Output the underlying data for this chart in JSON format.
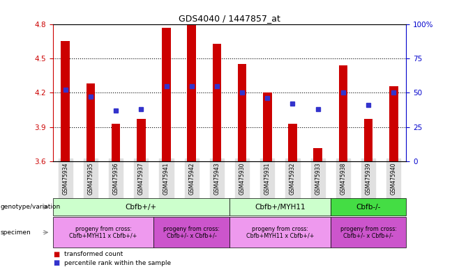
{
  "title": "GDS4040 / 1447857_at",
  "samples": [
    "GSM475934",
    "GSM475935",
    "GSM475936",
    "GSM475937",
    "GSM475941",
    "GSM475942",
    "GSM475943",
    "GSM475930",
    "GSM475931",
    "GSM475932",
    "GSM475933",
    "GSM475938",
    "GSM475939",
    "GSM475940"
  ],
  "red_values": [
    4.65,
    4.28,
    3.93,
    3.97,
    4.77,
    4.8,
    4.63,
    4.45,
    4.2,
    3.93,
    3.72,
    4.44,
    3.97,
    4.26
  ],
  "blue_pct": [
    52,
    47,
    37,
    38,
    55,
    55,
    55,
    50,
    46,
    42,
    38,
    50,
    41,
    50
  ],
  "ylim_left": [
    3.6,
    4.8
  ],
  "ylim_right": [
    0,
    100
  ],
  "yticks_left": [
    3.6,
    3.9,
    4.2,
    4.5,
    4.8
  ],
  "yticks_right": [
    0,
    25,
    50,
    75,
    100
  ],
  "ytick_labels_right": [
    "0",
    "25",
    "50",
    "75",
    "100%"
  ],
  "bar_color": "#cc0000",
  "dot_color": "#3333cc",
  "bar_bottom": 3.6,
  "genotype_groups": [
    {
      "label": "Cbfb+/+",
      "start": 0,
      "end": 7,
      "color": "#ccffcc"
    },
    {
      "label": "Cbfb+/MYH11",
      "start": 7,
      "end": 11,
      "color": "#ccffcc"
    },
    {
      "label": "Cbfb-/-",
      "start": 11,
      "end": 14,
      "color": "#44dd44"
    }
  ],
  "specimen_groups": [
    {
      "label": "progeny from cross:\nCbfb+MYH11 x Cbfb+/+",
      "start": 0,
      "end": 4,
      "color": "#ee99ee"
    },
    {
      "label": "progeny from cross:\nCbfb+/- x Cbfb+/-",
      "start": 4,
      "end": 7,
      "color": "#cc55cc"
    },
    {
      "label": "progeny from cross:\nCbfb+MYH11 x Cbfb+/+",
      "start": 7,
      "end": 11,
      "color": "#ee99ee"
    },
    {
      "label": "progeny from cross:\nCbfb+/- x Cbfb+/-",
      "start": 11,
      "end": 14,
      "color": "#cc55cc"
    }
  ],
  "genotype_label": "genotype/variation",
  "specimen_label": "specimen",
  "legend_red": "transformed count",
  "legend_blue": "percentile rank within the sample",
  "tick_color_left": "#cc0000",
  "tick_color_right": "#0000cc"
}
